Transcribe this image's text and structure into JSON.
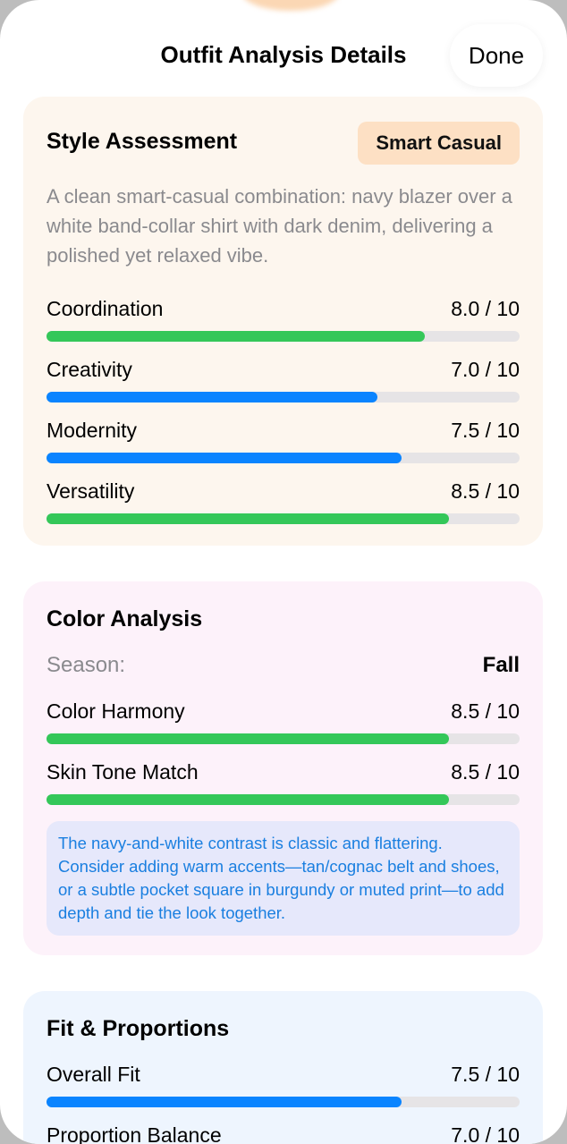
{
  "header": {
    "title": "Outfit Analysis Details",
    "done_label": "Done"
  },
  "colors": {
    "green": "#34c759",
    "blue": "#0a84ff",
    "track": "#e6e4e6"
  },
  "style_assessment": {
    "title": "Style Assessment",
    "badge": "Smart Casual",
    "description": "A clean smart-casual combination: navy blazer over a white band-collar shirt with dark denim, delivering a polished yet relaxed vibe.",
    "metrics": [
      {
        "label": "Coordination",
        "score": "8.0 / 10",
        "value": 8.0,
        "color": "green"
      },
      {
        "label": "Creativity",
        "score": "7.0 / 10",
        "value": 7.0,
        "color": "blue"
      },
      {
        "label": "Modernity",
        "score": "7.5 / 10",
        "value": 7.5,
        "color": "blue"
      },
      {
        "label": "Versatility",
        "score": "8.5 / 10",
        "value": 8.5,
        "color": "green"
      }
    ]
  },
  "color_analysis": {
    "title": "Color Analysis",
    "season_label": "Season:",
    "season_value": "Fall",
    "metrics": [
      {
        "label": "Color Harmony",
        "score": "8.5 / 10",
        "value": 8.5,
        "color": "green"
      },
      {
        "label": "Skin Tone Match",
        "score": "8.5 / 10",
        "value": 8.5,
        "color": "green"
      }
    ],
    "note": "The navy-and-white contrast is classic and flattering. Consider adding warm accents—tan/cognac belt and shoes, or a subtle pocket square in burgundy or muted print—to add depth and tie the look together."
  },
  "fit_proportions": {
    "title": "Fit & Proportions",
    "metrics": [
      {
        "label": "Overall Fit",
        "score": "7.5 / 10",
        "value": 7.5,
        "color": "blue"
      },
      {
        "label": "Proportion Balance",
        "score": "7.0 / 10",
        "value": 7.0,
        "color": "blue"
      }
    ]
  }
}
